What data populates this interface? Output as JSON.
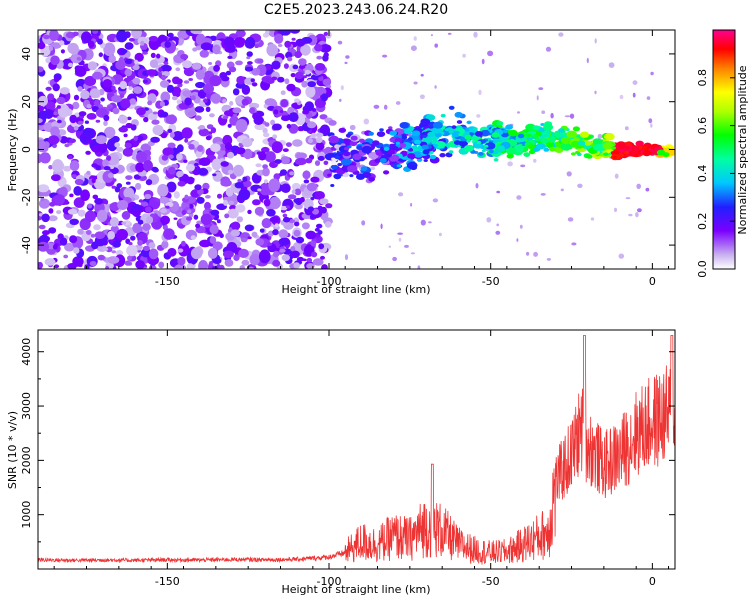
{
  "title": "C2E5.2023.243.06.24.R20",
  "chart_data": [
    {
      "type": "heatmap",
      "xlabel": "Height of straight line (km)",
      "ylabel": "Frequency (Hz)",
      "xlim": [
        -190,
        7
      ],
      "ylim": [
        -50,
        50
      ],
      "xticks": [
        -150,
        -100,
        -50,
        0
      ],
      "yticks": [
        -40,
        -20,
        0,
        20,
        40
      ],
      "colorbar": {
        "label": "Normalized spectral amplitude",
        "range": [
          0,
          1
        ],
        "ticks": [
          0.0,
          0.2,
          0.4,
          0.6,
          0.8
        ]
      },
      "features": {
        "noise_region_x": [
          -190,
          -100
        ],
        "signal_track": [
          {
            "x": -100,
            "y": -2
          },
          {
            "x": -90,
            "y": -4
          },
          {
            "x": -80,
            "y": 0
          },
          {
            "x": -70,
            "y": 4
          },
          {
            "x": -60,
            "y": 6
          },
          {
            "x": -50,
            "y": 3
          },
          {
            "x": -40,
            "y": 4
          },
          {
            "x": -30,
            "y": 5
          },
          {
            "x": -20,
            "y": 2
          },
          {
            "x": -10,
            "y": 0
          },
          {
            "x": 0,
            "y": 0
          },
          {
            "x": 5,
            "y": -1
          }
        ]
      }
    },
    {
      "type": "line",
      "xlabel": "Height of straight line (km)",
      "ylabel": "SNR (10 * v/v)",
      "xlim": [
        -190,
        7
      ],
      "ylim": [
        0,
        4400
      ],
      "xticks": [
        -150,
        -100,
        -50,
        0
      ],
      "yticks": [
        1000,
        2000,
        3000,
        4000
      ],
      "color": "#ee3333",
      "series": [
        {
          "x": [
            -190,
            -180,
            -170,
            -160,
            -150,
            -140,
            -130,
            -120,
            -110,
            -100,
            -95,
            -90,
            -85,
            -80,
            -75,
            -70,
            -65,
            -60,
            -55,
            -50,
            -45,
            -40,
            -35,
            -32,
            -30,
            -28,
            -25,
            -22,
            -20,
            -15,
            -10,
            -5,
            0,
            5,
            7
          ],
          "y": [
            170,
            160,
            165,
            160,
            170,
            165,
            175,
            170,
            180,
            220,
            300,
            500,
            450,
            600,
            550,
            800,
            700,
            450,
            350,
            300,
            320,
            450,
            600,
            700,
            1600,
            1800,
            2100,
            2600,
            2300,
            1900,
            2100,
            2500,
            2700,
            2850,
            3000
          ]
        }
      ],
      "peaks": [
        {
          "x": -68,
          "y": 1930
        },
        {
          "x": -21,
          "y": 4300
        },
        {
          "x": 6,
          "y": 4300
        }
      ]
    }
  ]
}
